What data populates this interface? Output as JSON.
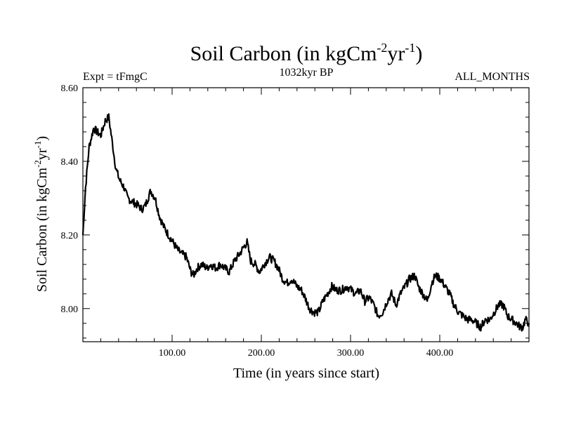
{
  "chart_data": {
    "type": "line",
    "title": "Soil Carbon (in kgCm",
    "title_sup1": "-2",
    "title_mid": "yr",
    "title_sup2": "-1",
    "title_end": ")",
    "subtitle_left": "Expt = tFmgC",
    "subtitle_center": "1032kyr BP",
    "subtitle_right": "ALL_MONTHS",
    "xlabel": "Time (in years since start)",
    "ylabel": "Soil Carbon (in kgCm",
    "ylabel_sup1": "-2",
    "ylabel_mid": "yr",
    "ylabel_sup2": "-1",
    "ylabel_end": ")",
    "xlim": [
      0,
      500
    ],
    "ylim": [
      7.91,
      8.6
    ],
    "x_ticks": [
      100,
      200,
      300,
      400
    ],
    "x_tick_labels": [
      "100.00",
      "200.00",
      "300.00",
      "400.00"
    ],
    "y_ticks": [
      8.0,
      8.2,
      8.4,
      8.6
    ],
    "y_tick_labels": [
      "8.00",
      "8.20",
      "8.40",
      "8.60"
    ],
    "series": [
      {
        "name": "Soil Carbon",
        "x": [
          0,
          3,
          7,
          12,
          16,
          20,
          25,
          29,
          33,
          37,
          41,
          46,
          50,
          56,
          62,
          66,
          70,
          76,
          81,
          86,
          91,
          96,
          101,
          106,
          110,
          116,
          121,
          124,
          128,
          133,
          139,
          143,
          149,
          154,
          159,
          164,
          170,
          176,
          181,
          184,
          188,
          193,
          198,
          203,
          209,
          214,
          219,
          224,
          229,
          234,
          240,
          245,
          249,
          254,
          259,
          264,
          269,
          274,
          279,
          284,
          290,
          296,
          301,
          306,
          311,
          316,
          321,
          326,
          331,
          336,
          341,
          346,
          351,
          356,
          361,
          366,
          372,
          376,
          381,
          386,
          391,
          395,
          401,
          406,
          411,
          416,
          421,
          426,
          431,
          436,
          441,
          446,
          451,
          456,
          461,
          466,
          471,
          476,
          481,
          486,
          490,
          493,
          496,
          500
        ],
        "y": [
          8.2,
          8.33,
          8.44,
          8.49,
          8.48,
          8.47,
          8.51,
          8.52,
          8.45,
          8.38,
          8.35,
          8.33,
          8.3,
          8.29,
          8.28,
          8.27,
          8.28,
          8.32,
          8.3,
          8.25,
          8.22,
          8.2,
          8.18,
          8.16,
          8.15,
          8.14,
          8.1,
          8.09,
          8.11,
          8.12,
          8.11,
          8.12,
          8.11,
          8.12,
          8.11,
          8.1,
          8.13,
          8.15,
          8.17,
          8.18,
          8.13,
          8.12,
          8.1,
          8.12,
          8.14,
          8.13,
          8.11,
          8.08,
          8.07,
          8.08,
          8.06,
          8.05,
          8.03,
          8.0,
          7.99,
          7.99,
          8.02,
          8.04,
          8.06,
          8.05,
          8.05,
          8.06,
          8.05,
          8.04,
          8.05,
          8.02,
          8.03,
          8.01,
          7.98,
          7.99,
          8.02,
          8.04,
          8.01,
          8.04,
          8.06,
          8.08,
          8.09,
          8.06,
          8.04,
          8.02,
          8.07,
          8.09,
          8.08,
          8.06,
          8.04,
          8.01,
          7.99,
          7.98,
          7.97,
          7.97,
          7.96,
          7.95,
          7.97,
          7.97,
          7.99,
          8.01,
          8.01,
          7.98,
          7.97,
          7.96,
          7.95,
          7.95,
          7.97,
          7.96
        ]
      }
    ]
  }
}
